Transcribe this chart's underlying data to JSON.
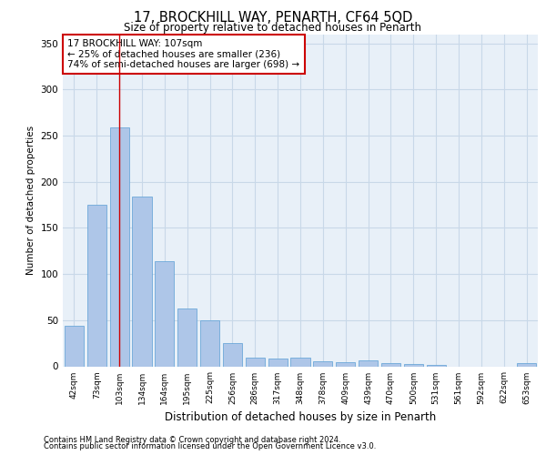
{
  "title1": "17, BROCKHILL WAY, PENARTH, CF64 5QD",
  "title2": "Size of property relative to detached houses in Penarth",
  "xlabel": "Distribution of detached houses by size in Penarth",
  "ylabel": "Number of detached properties",
  "categories": [
    "42sqm",
    "73sqm",
    "103sqm",
    "134sqm",
    "164sqm",
    "195sqm",
    "225sqm",
    "256sqm",
    "286sqm",
    "317sqm",
    "348sqm",
    "378sqm",
    "409sqm",
    "439sqm",
    "470sqm",
    "500sqm",
    "531sqm",
    "561sqm",
    "592sqm",
    "622sqm",
    "653sqm"
  ],
  "values": [
    44,
    175,
    259,
    184,
    114,
    63,
    50,
    25,
    9,
    8,
    9,
    5,
    4,
    6,
    3,
    2,
    1,
    0,
    0,
    0,
    3
  ],
  "bar_color": "#aec6e8",
  "bar_edge_color": "#5a9fd4",
  "vline_x": 2,
  "vline_color": "#cc0000",
  "annotation_text": "17 BROCKHILL WAY: 107sqm\n← 25% of detached houses are smaller (236)\n74% of semi-detached houses are larger (698) →",
  "annotation_box_color": "#ffffff",
  "annotation_box_edge": "#cc0000",
  "ylim": [
    0,
    360
  ],
  "yticks": [
    0,
    50,
    100,
    150,
    200,
    250,
    300,
    350
  ],
  "grid_color": "#c8d8e8",
  "background_color": "#e8f0f8",
  "footer1": "Contains HM Land Registry data © Crown copyright and database right 2024.",
  "footer2": "Contains public sector information licensed under the Open Government Licence v3.0."
}
